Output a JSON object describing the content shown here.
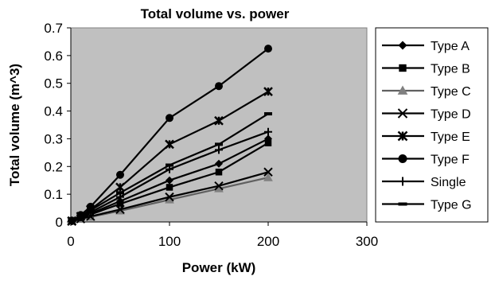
{
  "chart_data": {
    "type": "line",
    "title": "Total volume vs. power",
    "xlabel": "Power (kW)",
    "ylabel": "Total volume (m^3)",
    "xlim": [
      0,
      300
    ],
    "ylim": [
      0,
      0.7
    ],
    "x_ticks": [
      "0",
      "100",
      "200",
      "300"
    ],
    "y_ticks": [
      "0",
      "0.1",
      "0.2",
      "0.3",
      "0.4",
      "0.5",
      "0.6",
      "0.7"
    ],
    "x_tick_values": [
      0,
      100,
      200,
      300
    ],
    "y_tick_values": [
      0,
      0.1,
      0.2,
      0.3,
      0.4,
      0.5,
      0.6,
      0.7
    ],
    "grid": false,
    "plot_background": "#c0c0c0",
    "line_color": "#000000",
    "legend_position": "right",
    "series": [
      {
        "name": "Type A",
        "marker": "diamond",
        "x": [
          1,
          10,
          20,
          50,
          100,
          150,
          200
        ],
        "y": [
          0.003,
          0.015,
          0.03,
          0.075,
          0.15,
          0.21,
          0.3
        ]
      },
      {
        "name": "Type B",
        "marker": "square",
        "x": [
          1,
          10,
          20,
          50,
          100,
          150,
          200
        ],
        "y": [
          0.003,
          0.014,
          0.027,
          0.065,
          0.125,
          0.18,
          0.285
        ]
      },
      {
        "name": "Type C",
        "marker": "triangle",
        "x": [
          1,
          10,
          20,
          50,
          100,
          150,
          200
        ],
        "y": [
          0.002,
          0.01,
          0.018,
          0.04,
          0.08,
          0.12,
          0.16
        ]
      },
      {
        "name": "Type D",
        "marker": "x",
        "x": [
          1,
          10,
          20,
          50,
          100,
          150,
          200
        ],
        "y": [
          0.002,
          0.011,
          0.02,
          0.045,
          0.09,
          0.13,
          0.18
        ]
      },
      {
        "name": "Type E",
        "marker": "star",
        "x": [
          1,
          10,
          20,
          50,
          100,
          150,
          200
        ],
        "y": [
          0.004,
          0.02,
          0.045,
          0.125,
          0.28,
          0.365,
          0.47
        ]
      },
      {
        "name": "Type F",
        "marker": "circle",
        "x": [
          1,
          10,
          20,
          50,
          100,
          150,
          200
        ],
        "y": [
          0.005,
          0.025,
          0.055,
          0.17,
          0.375,
          0.49,
          0.625
        ]
      },
      {
        "name": "Single",
        "marker": "plus",
        "x": [
          1,
          10,
          20,
          50,
          100,
          150,
          200
        ],
        "y": [
          0.003,
          0.017,
          0.035,
          0.09,
          0.19,
          0.26,
          0.325
        ]
      },
      {
        "name": "Type G",
        "marker": "dash",
        "x": [
          1,
          10,
          20,
          50,
          100,
          150,
          200
        ],
        "y": [
          0.004,
          0.02,
          0.042,
          0.105,
          0.205,
          0.28,
          0.39
        ]
      }
    ]
  }
}
